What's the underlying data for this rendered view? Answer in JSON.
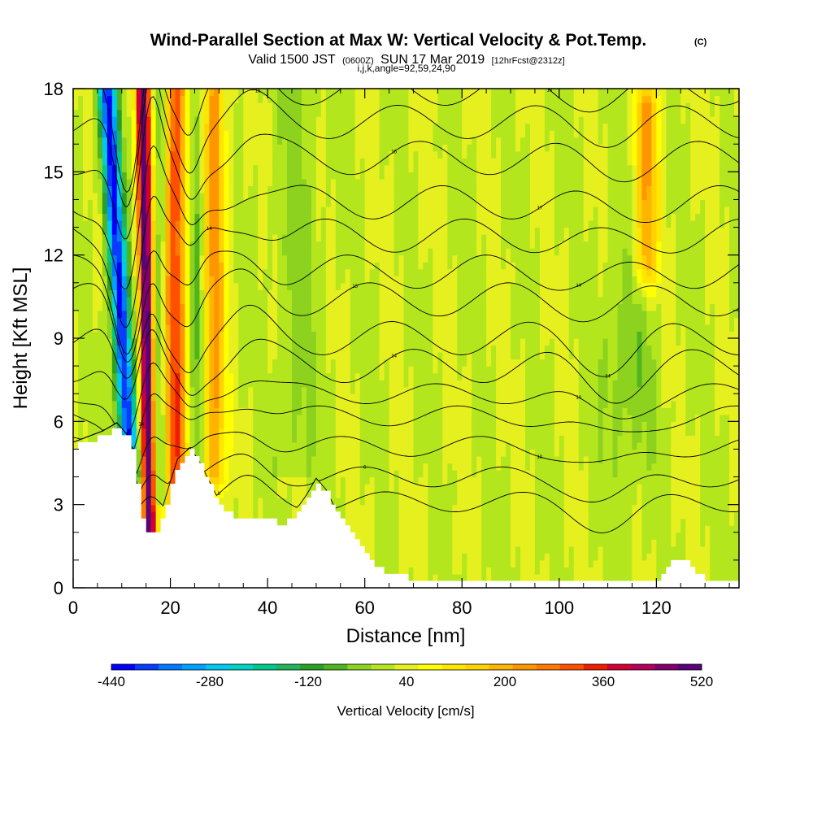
{
  "chart_data": {
    "type": "heatmap",
    "title": "Wind-Parallel Section at Max W: Vertical Velocity & Pot.Temp.",
    "title_mark": "(C)",
    "subtitle": {
      "valid": "Valid 1500 JST",
      "zulu": "(0600Z)",
      "date": "SUN 17 Mar 2019",
      "forecast": "[12hrFcst@2312z]"
    },
    "subtitle2": "i,j,k,angle=92,59,24,90",
    "xlabel": "Distance [nm]",
    "ylabel": "Height [Kft MSL]",
    "xlim": [
      0,
      137
    ],
    "ylim": [
      0,
      18
    ],
    "x_ticks": [
      "0",
      "20",
      "40",
      "60",
      "80",
      "100",
      "120"
    ],
    "y_ticks": [
      "0",
      "3",
      "6",
      "9",
      "12",
      "15",
      "18"
    ],
    "colorbar": {
      "label": "Vertical Velocity [cm/s]",
      "min": -440,
      "max": 520,
      "step": 40,
      "ticks": [
        "-440",
        "-280",
        "-120",
        "40",
        "200",
        "360",
        "520"
      ],
      "colors": [
        "#0000ff",
        "#0a3cff",
        "#0078ff",
        "#00a0ff",
        "#00c8f0",
        "#00d2c8",
        "#00c88c",
        "#1eb45a",
        "#28a028",
        "#50b41e",
        "#8cd21e",
        "#b4e61e",
        "#e6f01e",
        "#ffff00",
        "#ffe600",
        "#ffd200",
        "#ffb400",
        "#ff9600",
        "#ff7800",
        "#ff5000",
        "#f01e00",
        "#d20032",
        "#b4005a",
        "#82006e",
        "#5a0078"
      ]
    },
    "vertical_velocity_features": [
      {
        "kind": "downdraft",
        "x": 11.5,
        "min_cms": -440,
        "z_range": [
          4.5,
          18
        ]
      },
      {
        "kind": "updraft",
        "x": 15,
        "max_cms": 520,
        "z_range": [
          2,
          18
        ]
      },
      {
        "kind": "updraft",
        "x": 21,
        "max_cms": 300,
        "z_range": [
          3,
          18
        ]
      },
      {
        "kind": "updraft",
        "x": 29,
        "max_cms": 200,
        "z_range": [
          4.5,
          18
        ]
      },
      {
        "kind": "updraft",
        "x": 118,
        "max_cms": 200,
        "z_range": [
          12,
          17
        ]
      }
    ],
    "terrain_profile": {
      "x": [
        0,
        6,
        9,
        11.5,
        12.5,
        13.5,
        15,
        17.5,
        18.5,
        20,
        21.5,
        24,
        26,
        28,
        30,
        33,
        40,
        42,
        44,
        46,
        48,
        50,
        52,
        54,
        56,
        58,
        60,
        62,
        64,
        66,
        70,
        80,
        90,
        100,
        110,
        120,
        123,
        126,
        128,
        130,
        137
      ],
      "z_kft": [
        5.1,
        5.5,
        5.8,
        5.3,
        4.6,
        2.8,
        2.1,
        2.1,
        2.8,
        3.7,
        4.5,
        4.9,
        4.4,
        3.7,
        3.0,
        2.6,
        2.6,
        2.3,
        2.4,
        2.7,
        3.2,
        3.8,
        3.4,
        2.7,
        2.2,
        1.7,
        1.2,
        0.8,
        0.6,
        0.5,
        0.3,
        0.3,
        0.3,
        0.3,
        0.3,
        0.3,
        1.0,
        1.0,
        0.6,
        0.3,
        0.3
      ]
    },
    "theta_contour_bases_kft": [
      3.1,
      4.0,
      5.1,
      6.2,
      7.0,
      8.0,
      9.0,
      10.4,
      11.4,
      12.7,
      13.9,
      15.5,
      16.8,
      18.0
    ],
    "theta_contour_labels": [
      "8",
      "6",
      "10",
      "14",
      "14",
      "14",
      "14",
      "13",
      "14",
      "14",
      "17",
      "16",
      "15",
      "18"
    ]
  }
}
